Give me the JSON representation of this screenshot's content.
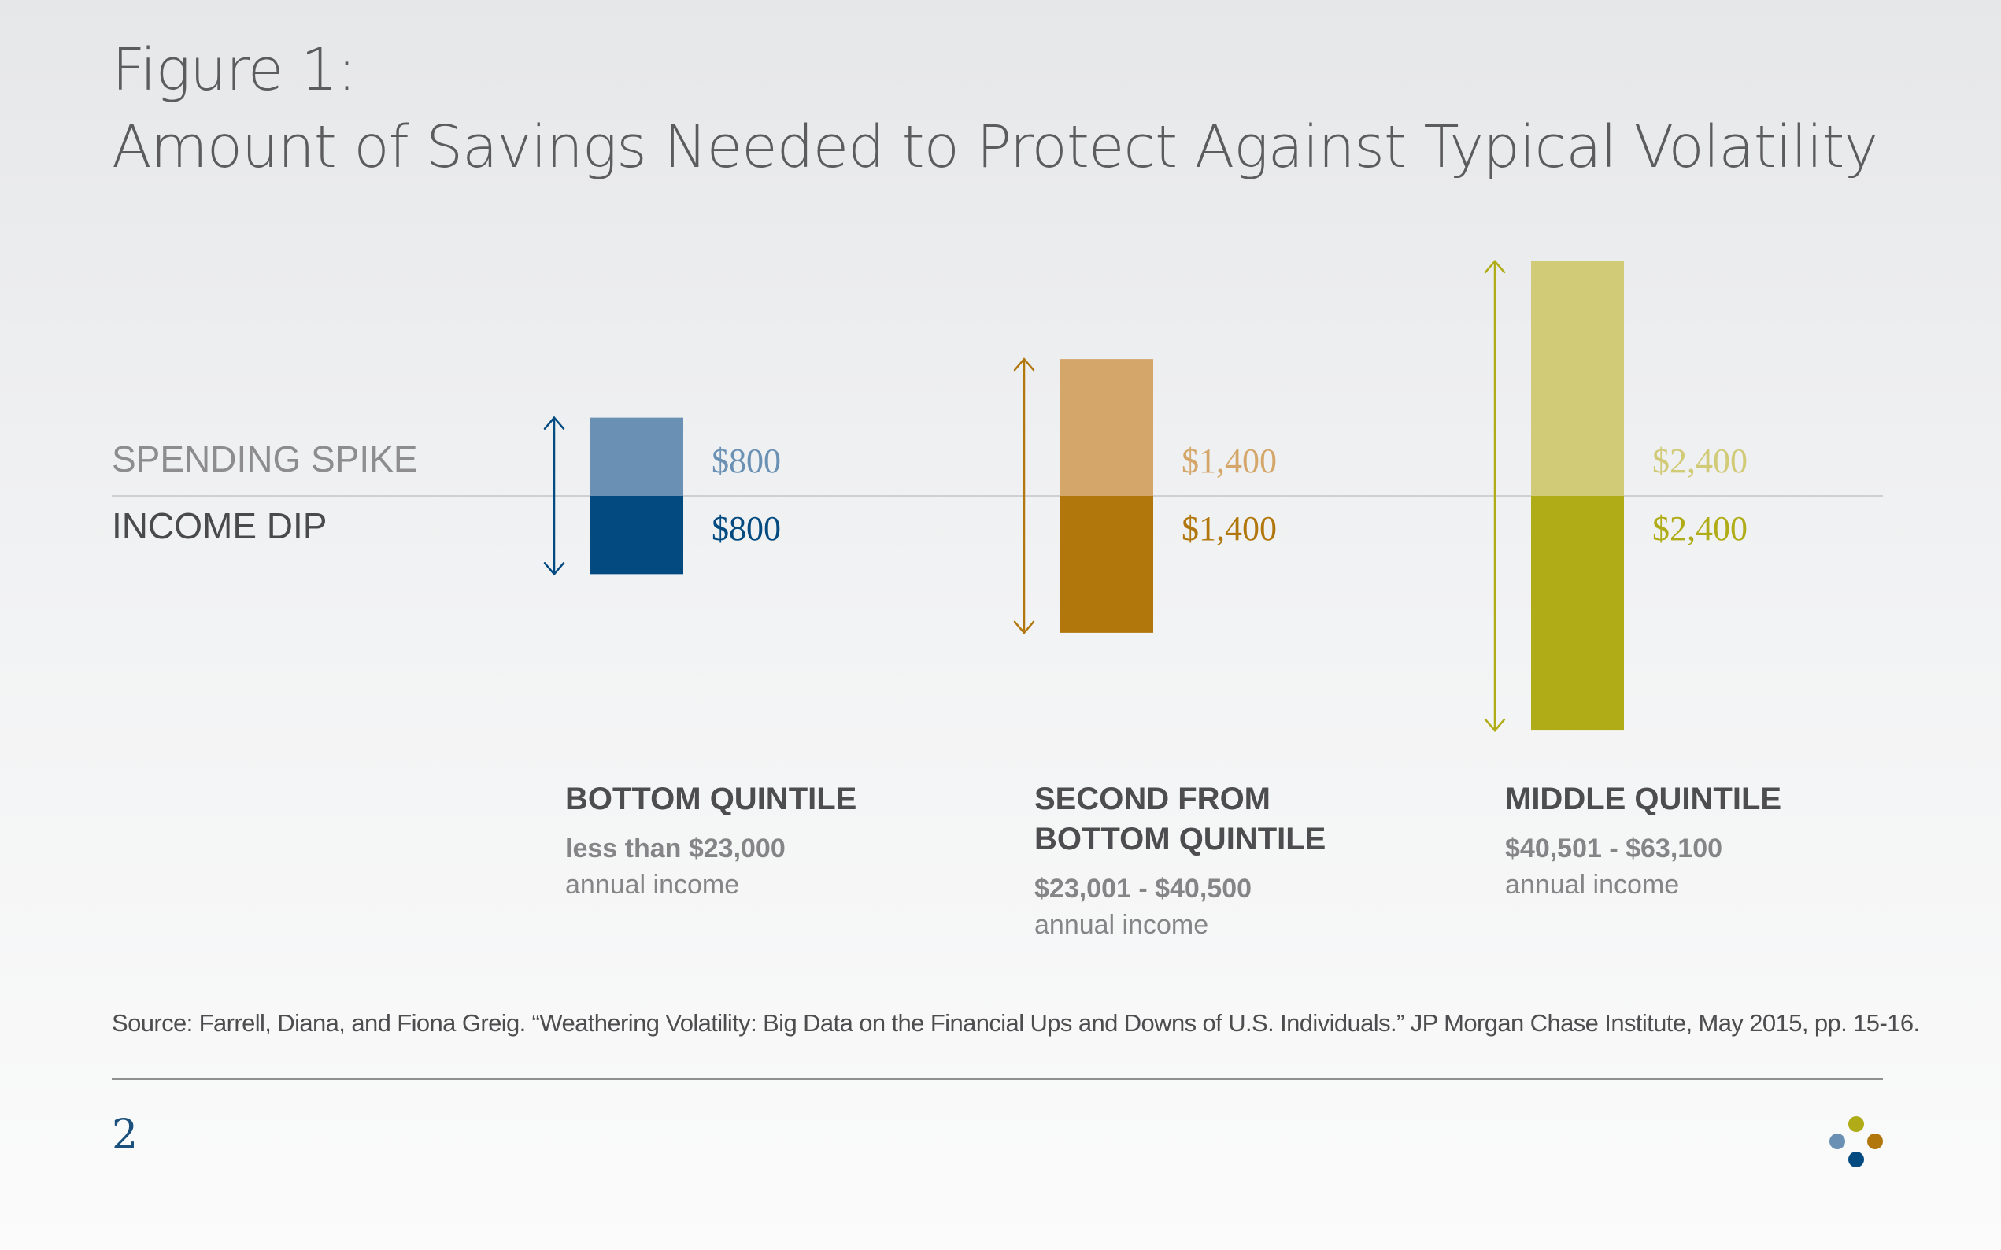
{
  "title": {
    "line1": "Figure 1:",
    "line2": "Amount of Savings Needed to Protect Against Typical Volatility"
  },
  "row_labels": {
    "spike": "SPENDING SPIKE",
    "dip": "INCOME DIP"
  },
  "chart_data": {
    "type": "bar",
    "categories": [
      "BOTTOM QUINTILE",
      "SECOND FROM BOTTOM QUINTILE",
      "MIDDLE QUINTILE"
    ],
    "series": [
      {
        "name": "SPENDING SPIKE",
        "values": [
          800,
          1400,
          2400
        ]
      },
      {
        "name": "INCOME DIP",
        "values": [
          800,
          1400,
          2400
        ]
      }
    ],
    "spike_labels": [
      "$800",
      "$1,400",
      "$2,400"
    ],
    "dip_labels": [
      "$800",
      "$1,400",
      "$2,400"
    ],
    "colors": {
      "spike": [
        "#6a90b3",
        "#d4a66a",
        "#d1cb78"
      ],
      "dip": [
        "#034a80",
        "#b1770d",
        "#b0ac17"
      ]
    }
  },
  "quintiles": [
    {
      "title_lines": [
        "BOTTOM QUINTILE"
      ],
      "range": "less than $23,000",
      "note": "annual income"
    },
    {
      "title_lines": [
        "SECOND FROM",
        "BOTTOM QUINTILE"
      ],
      "range": "$23,001 - $40,500",
      "note": "annual income"
    },
    {
      "title_lines": [
        "MIDDLE QUINTILE"
      ],
      "range": "$40,501 - $63,100",
      "note": "annual income"
    }
  ],
  "source": "Source: Farrell, Diana, and Fiona Greig. “Weathering Volatility: Big Data on the Financial Ups and Downs of U.S. Individuals.” JP Morgan Chase Institute, May 2015, pp. 15-16.",
  "page_number": "2",
  "logo_colors": [
    "#b0ac17",
    "#6a90b3",
    "#b1770d",
    "#034a80"
  ]
}
